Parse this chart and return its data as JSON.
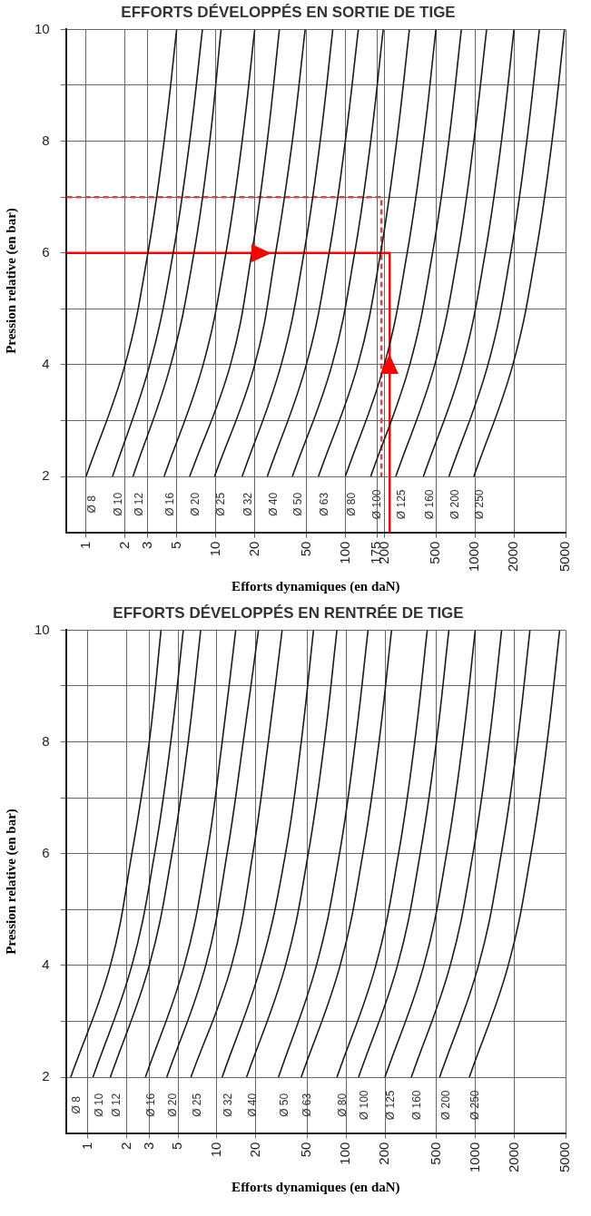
{
  "chart_data": [
    {
      "type": "line",
      "title": "EFFORTS DÉVELOPPÉS EN SORTIE DE TIGE",
      "xlabel": "Efforts dynamiques (en daN)",
      "ylabel": "Pression relative (en bar)",
      "log": "x",
      "grid": true,
      "legend": false,
      "marker": "none",
      "xlim": [
        0.71,
        5000
      ],
      "ylim": [
        1,
        10
      ],
      "xticks": [
        1,
        2,
        3,
        5,
        10,
        20,
        50,
        100,
        175,
        200,
        500,
        1000,
        2000,
        5000
      ],
      "yticks": [
        2,
        {
          "value": 3,
          "label": null
        },
        4,
        {
          "value": 5,
          "label": null
        },
        6,
        {
          "value": 7,
          "label": null
        },
        8,
        {
          "value": 9,
          "label": null
        },
        10
      ],
      "series": [
        {
          "name": "Ø 8",
          "color": "#1a1a1a",
          "x": [
            1.0,
            2.0,
            3.0,
            4.0,
            5.0
          ],
          "values": [
            2,
            4,
            6,
            8,
            10
          ]
        },
        {
          "name": "Ø 10",
          "color": "#1a1a1a",
          "x": [
            1.6,
            3.1,
            4.7,
            6.3,
            7.9
          ],
          "values": [
            2,
            4,
            6,
            8,
            10
          ]
        },
        {
          "name": "Ø 12",
          "color": "#1a1a1a",
          "x": [
            2.3,
            4.5,
            6.8,
            9.0,
            11
          ],
          "values": [
            2,
            4,
            6,
            8,
            10
          ]
        },
        {
          "name": "Ø 16",
          "color": "#1a1a1a",
          "x": [
            4.0,
            8.0,
            12,
            16,
            20
          ],
          "values": [
            2,
            4,
            6,
            8,
            10
          ]
        },
        {
          "name": "Ø 20",
          "color": "#1a1a1a",
          "x": [
            6.3,
            13,
            19,
            25,
            31
          ],
          "values": [
            2,
            4,
            6,
            8,
            10
          ]
        },
        {
          "name": "Ø 25",
          "color": "#1a1a1a",
          "x": [
            9.8,
            20,
            29,
            39,
            49
          ],
          "values": [
            2,
            4,
            6,
            8,
            10
          ]
        },
        {
          "name": "Ø 32",
          "color": "#1a1a1a",
          "x": [
            16,
            32,
            48,
            64,
            80
          ],
          "values": [
            2,
            4,
            6,
            8,
            10
          ]
        },
        {
          "name": "Ø 40",
          "color": "#1a1a1a",
          "x": [
            25,
            50,
            75,
            100,
            126
          ],
          "values": [
            2,
            4,
            6,
            8,
            10
          ]
        },
        {
          "name": "Ø 50",
          "color": "#1a1a1a",
          "x": [
            39,
            79,
            118,
            157,
            196
          ],
          "values": [
            2,
            4,
            6,
            8,
            10
          ]
        },
        {
          "name": "Ø 63",
          "color": "#1a1a1a",
          "x": [
            62,
            125,
            187,
            249,
            312
          ],
          "values": [
            2,
            4,
            6,
            8,
            10
          ]
        },
        {
          "name": "Ø 80",
          "color": "#1a1a1a",
          "x": [
            100,
            200,
            300,
            400,
            500
          ],
          "values": [
            2,
            4,
            6,
            8,
            10
          ]
        },
        {
          "name": "Ø 100",
          "color": "#1a1a1a",
          "x": [
            157,
            314,
            471,
            628,
            785
          ],
          "values": [
            2,
            4,
            6,
            8,
            10
          ]
        },
        {
          "name": "Ø 125",
          "color": "#1a1a1a",
          "x": [
            245,
            490,
            740,
            980,
            1230
          ],
          "values": [
            2,
            4,
            6,
            8,
            10
          ]
        },
        {
          "name": "Ø 160",
          "color": "#1a1a1a",
          "x": [
            400,
            800,
            1200,
            1600,
            2000
          ],
          "values": [
            2,
            4,
            6,
            8,
            10
          ]
        },
        {
          "name": "Ø 200",
          "color": "#1a1a1a",
          "x": [
            630,
            1260,
            1890,
            2510,
            3140
          ],
          "values": [
            2,
            4,
            6,
            8,
            10
          ]
        },
        {
          "name": "Ø 250",
          "color": "#1a1a1a",
          "x": [
            980,
            1960,
            2950,
            3930,
            4900
          ],
          "values": [
            2,
            4,
            6,
            8,
            10
          ]
        },
        {
          "color": "#d04848",
          "line_style": "dashed",
          "x": [
            0.71,
            190,
            190
          ],
          "values": [
            7,
            7,
            2
          ]
        },
        {
          "color": "#ff0000",
          "line_style": "solid",
          "x": [
            0.71,
            220,
            220
          ],
          "values": [
            6,
            6,
            1
          ]
        }
      ]
    },
    {
      "type": "line",
      "title": "EFFORTS DÉVELOPPÉS EN RENTRÉE DE TIGE",
      "xlabel": "Efforts dynamiques (en daN)",
      "ylabel": "Pression relative (en bar)",
      "log": "x",
      "grid": true,
      "legend": false,
      "marker": "none",
      "xlim": [
        0.68,
        5000
      ],
      "ylim": [
        1,
        10
      ],
      "xticks": [
        1,
        2,
        3,
        5,
        10,
        20,
        50,
        100,
        200,
        500,
        1000,
        2000,
        5000
      ],
      "yticks": [
        2,
        {
          "value": 3,
          "label": null
        },
        4,
        {
          "value": 5,
          "label": null
        },
        6,
        {
          "value": 7,
          "label": null
        },
        8,
        {
          "value": 9,
          "label": null
        },
        10
      ],
      "series": [
        {
          "name": "Ø 8",
          "color": "#1a1a1a",
          "x": [
            0.74,
            1.5,
            2.2,
            3.0,
            3.7
          ],
          "values": [
            2,
            4,
            6,
            8,
            10
          ]
        },
        {
          "name": "Ø 10",
          "color": "#1a1a1a",
          "x": [
            1.1,
            2.2,
            3.3,
            4.4,
            5.5
          ],
          "values": [
            2,
            4,
            6,
            8,
            10
          ]
        },
        {
          "name": "Ø 12",
          "color": "#1a1a1a",
          "x": [
            1.5,
            3.0,
            4.5,
            6.0,
            7.5
          ],
          "values": [
            2,
            4,
            6,
            8,
            10
          ]
        },
        {
          "name": "Ø 16",
          "color": "#1a1a1a",
          "x": [
            2.8,
            5.6,
            8.4,
            11,
            14
          ],
          "values": [
            2,
            4,
            6,
            8,
            10
          ]
        },
        {
          "name": "Ø 20",
          "color": "#1a1a1a",
          "x": [
            4.1,
            8.2,
            12,
            16,
            21
          ],
          "values": [
            2,
            4,
            6,
            8,
            10
          ]
        },
        {
          "name": "Ø 25",
          "color": "#1a1a1a",
          "x": [
            6.3,
            13,
            19,
            25,
            32
          ],
          "values": [
            2,
            4,
            6,
            8,
            10
          ]
        },
        {
          "name": "Ø 32",
          "color": "#1a1a1a",
          "x": [
            11,
            22,
            34,
            45,
            56
          ],
          "values": [
            2,
            4,
            6,
            8,
            10
          ]
        },
        {
          "name": "Ø 40",
          "color": "#1a1a1a",
          "x": [
            17,
            34,
            51,
            68,
            85
          ],
          "values": [
            2,
            4,
            6,
            8,
            10
          ]
        },
        {
          "name": "Ø 50",
          "color": "#1a1a1a",
          "x": [
            30,
            59,
            89,
            118,
            148
          ],
          "values": [
            2,
            4,
            6,
            8,
            10
          ]
        },
        {
          "name": "Ø 63",
          "color": "#1a1a1a",
          "x": [
            45,
            90,
            135,
            180,
            225
          ],
          "values": [
            2,
            4,
            6,
            8,
            10
          ]
        },
        {
          "name": "Ø 80",
          "color": "#1a1a1a",
          "x": [
            85,
            170,
            255,
            340,
            425
          ],
          "values": [
            2,
            4,
            6,
            8,
            10
          ]
        },
        {
          "name": "Ø 100",
          "color": "#1a1a1a",
          "x": [
            125,
            250,
            375,
            500,
            625
          ],
          "values": [
            2,
            4,
            6,
            8,
            10
          ]
        },
        {
          "name": "Ø 125",
          "color": "#1a1a1a",
          "x": [
            200,
            400,
            600,
            800,
            1000
          ],
          "values": [
            2,
            4,
            6,
            8,
            10
          ]
        },
        {
          "name": "Ø 160",
          "color": "#1a1a1a",
          "x": [
            320,
            640,
            960,
            1280,
            1600
          ],
          "values": [
            2,
            4,
            6,
            8,
            10
          ]
        },
        {
          "name": "Ø 200",
          "color": "#1a1a1a",
          "x": [
            530,
            1060,
            1590,
            2120,
            2650
          ],
          "values": [
            2,
            4,
            6,
            8,
            10
          ]
        },
        {
          "name": "Ø 250",
          "color": "#1a1a1a",
          "x": [
            900,
            1800,
            2700,
            3600,
            4500
          ],
          "values": [
            2,
            4,
            6,
            8,
            10
          ]
        }
      ]
    }
  ]
}
